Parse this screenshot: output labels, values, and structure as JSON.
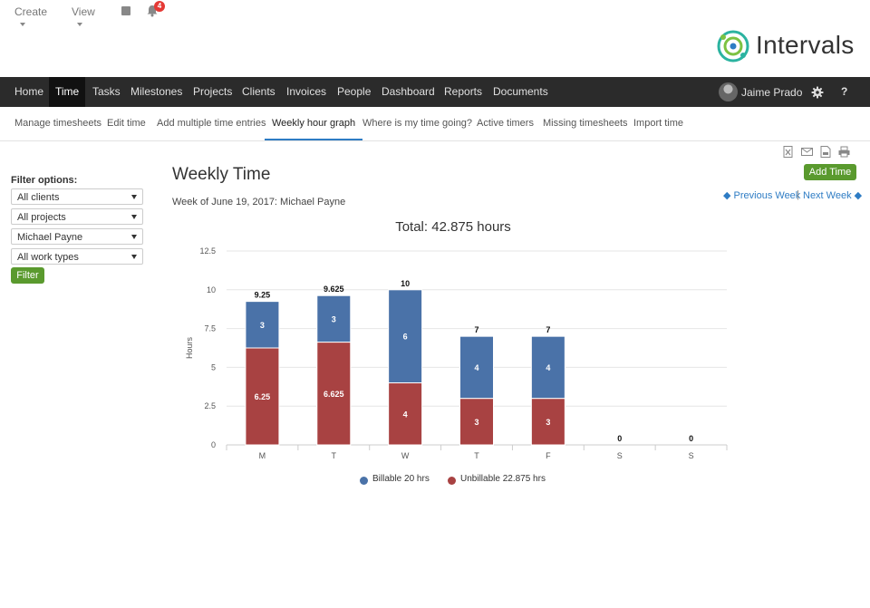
{
  "util": {
    "create_label": "Create",
    "view_label": "View",
    "notifications_count": "4"
  },
  "logo": {
    "text": "Intervals"
  },
  "nav": {
    "items": [
      "Home",
      "Time",
      "Tasks",
      "Milestones",
      "Projects",
      "Clients",
      "Invoices",
      "People",
      "Dashboard",
      "Reports",
      "Documents"
    ],
    "active": "Time",
    "user_name": "Jaime Prado",
    "help_label": "?"
  },
  "subnav": {
    "items": [
      "Manage timesheets",
      "Edit time",
      "Add multiple time entries",
      "Weekly hour graph",
      "Where is my time going?",
      "Active timers",
      "Missing timesheets",
      "Import time"
    ],
    "active": "Weekly hour graph"
  },
  "filters": {
    "title": "Filter options:",
    "clients": "All clients",
    "projects": "All projects",
    "person": "Michael Payne",
    "work_types": "All work types",
    "button": "Filter"
  },
  "main": {
    "title": "Weekly Time",
    "week_label": "Week of June 19, 2017: Michael Payne",
    "add_time": "Add Time",
    "prev_week": "Previous Week",
    "next_week": "Next Week",
    "separator": "|"
  },
  "colors": {
    "billable": "#4a72a8",
    "unbillable": "#a84242",
    "accent_green": "#5a9a2e",
    "link_blue": "#2e7cc4",
    "nav_bg": "#2b2b2b"
  },
  "chart_data": {
    "type": "bar",
    "stacked": true,
    "title": "Total: 42.875 hours",
    "ylabel": "Hours",
    "ylim": [
      0,
      12.5
    ],
    "yticks": [
      "0",
      "2.5",
      "5",
      "7.5",
      "10",
      "12.5"
    ],
    "categories": [
      "M",
      "T",
      "W",
      "T",
      "F",
      "S",
      "S"
    ],
    "totals": [
      "9.25",
      "9.625",
      "10",
      "7",
      "7",
      "0",
      "0"
    ],
    "series": [
      {
        "name": "Unbillable",
        "values": [
          6.25,
          6.625,
          4,
          3,
          3,
          0,
          0
        ],
        "labels": [
          "6.25",
          "6.625",
          "4",
          "3",
          "3",
          "",
          ""
        ],
        "color": "#a84242"
      },
      {
        "name": "Billable",
        "values": [
          3,
          3,
          6,
          4,
          4,
          0,
          0
        ],
        "labels": [
          "3",
          "3",
          "6",
          "4",
          "4",
          "",
          ""
        ],
        "color": "#4a72a8"
      }
    ],
    "legend": [
      "Billable 20 hrs",
      "Unbillable 22.875 hrs"
    ],
    "legend_position": "bottom"
  }
}
